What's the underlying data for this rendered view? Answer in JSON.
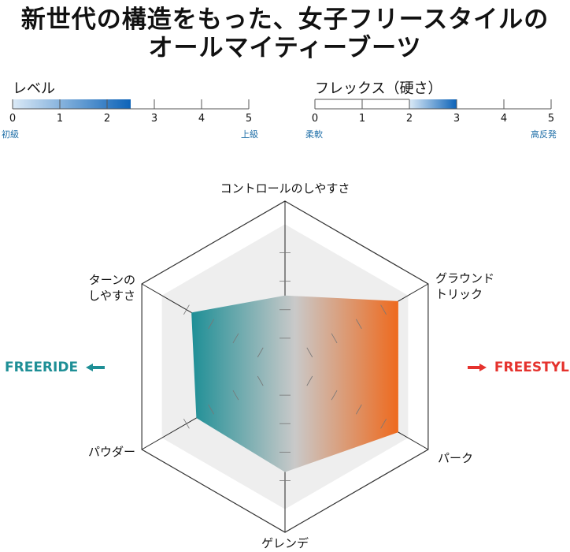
{
  "headline": {
    "line1": "新世代の構造をもった、女子フリースタイルの",
    "line2": "オールマイティーブーツ"
  },
  "scales": [
    {
      "title": "レベル",
      "ticks": [
        "0",
        "1",
        "2",
        "3",
        "4",
        "5"
      ],
      "range": [
        0,
        2.5
      ],
      "left_label": "初級",
      "right_label": "上級",
      "color": "#0d63b8"
    },
    {
      "title": "フレックス（硬さ）",
      "ticks": [
        "0",
        "1",
        "2",
        "3",
        "4",
        "5"
      ],
      "range": [
        2,
        3
      ],
      "left_label": "柔軟",
      "right_label": "高反発",
      "color": "#0d63b8"
    }
  ],
  "chart_data": {
    "type": "radar",
    "axes": [
      "コントロールのしやすさ",
      "グラウンドトリック",
      "パーク",
      "ゲレンデ",
      "パウダー",
      "ターンのしやすさ"
    ],
    "axis_labels": [
      [
        "コントロールのしやすさ"
      ],
      [
        "グラウンド",
        "トリック"
      ],
      [
        "パーク"
      ],
      [
        "ゲレンデ"
      ],
      [
        "パウダー"
      ],
      [
        "ターンの",
        "しやすさ"
      ]
    ],
    "scale_max": 5,
    "values": [
      2.5,
      4.6,
      4.6,
      3.7,
      3.6,
      3.8
    ],
    "gradient": {
      "left": "#1e8f96",
      "right": "#ee6a1e"
    }
  },
  "sides": {
    "left": "FREERIDE",
    "right": "FREESTYLE",
    "left_color": "#1e8f96",
    "right_color": "#e5322d"
  }
}
